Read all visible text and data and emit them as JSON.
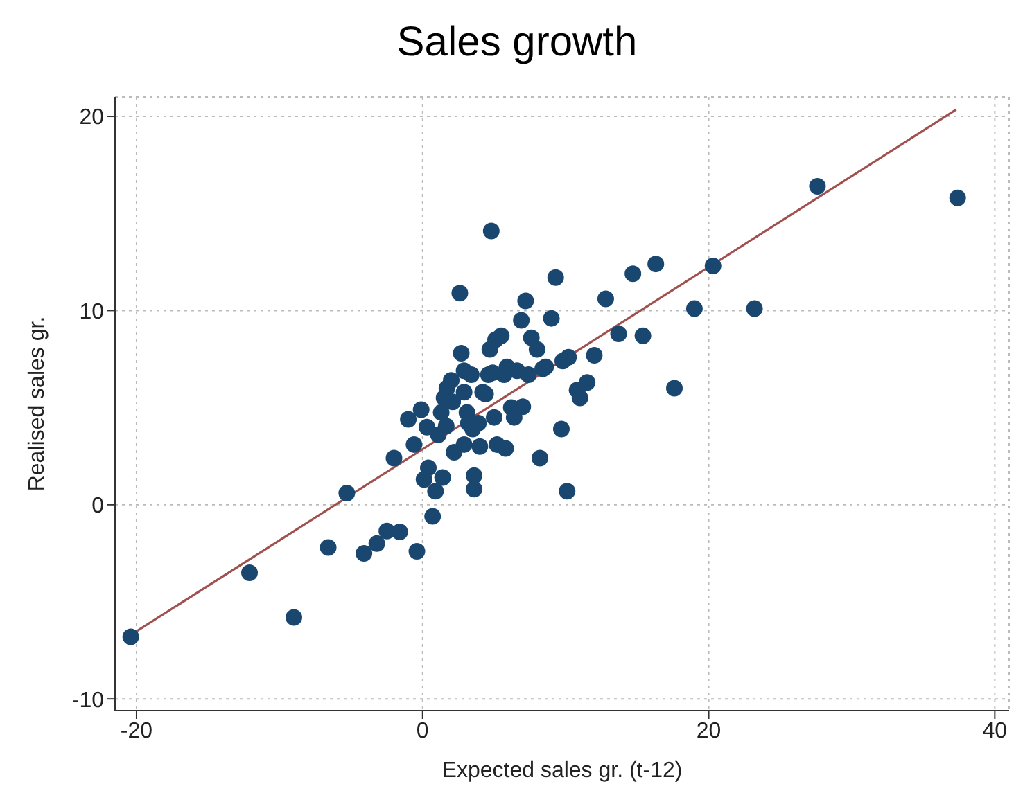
{
  "chart_data": {
    "type": "scatter",
    "title": "Sales growth",
    "xlabel": "Expected sales gr. (t-12)",
    "ylabel": "Realised sales gr.",
    "xlim": [
      -21.5,
      41
    ],
    "ylim": [
      -10.6,
      21
    ],
    "xticks": [
      -20,
      0,
      20,
      40
    ],
    "yticks": [
      -10,
      0,
      10,
      20
    ],
    "grid": true,
    "series": [
      {
        "color": "#1a476f",
        "marker": "circle",
        "x": [
          -20.4,
          -12.1,
          -9.0,
          -6.6,
          -5.3,
          -4.1,
          -3.2,
          -2.5,
          -1.6,
          -0.4,
          0.7,
          0.9,
          0.1,
          1.4,
          4.8,
          2.6,
          9.3,
          7.2,
          6.9,
          9.0,
          12.8,
          14.7,
          16.3,
          5.5,
          5.1,
          7.6,
          8.0,
          4.7,
          2.7,
          13.7,
          15.4,
          12.0,
          10.2,
          9.8,
          8.6,
          8.4,
          7.4,
          6.6,
          5.9,
          5.7,
          4.9,
          4.6,
          2.9,
          3.4,
          2.0,
          1.7,
          1.5,
          2.9,
          2.1,
          4.2,
          4.4,
          11.5,
          10.8,
          11.0,
          1.3,
          -0.1,
          -1.0,
          0.3,
          3.1,
          5.0,
          6.2,
          7.0,
          6.4,
          3.2,
          3.9,
          3.5,
          1.65,
          1.1,
          -0.6,
          -2.0,
          2.2,
          2.9,
          4.0,
          5.2,
          5.8,
          8.2,
          9.7,
          3.6,
          3.6,
          10.1,
          0.4,
          27.6,
          37.4,
          20.3,
          19.0,
          23.2,
          17.6
        ],
        "values": [
          -6.8,
          -3.5,
          -5.8,
          -2.2,
          0.6,
          -2.5,
          -2.0,
          -1.35,
          -1.4,
          -2.4,
          -0.6,
          0.7,
          1.3,
          1.4,
          14.1,
          10.9,
          11.7,
          10.5,
          9.5,
          9.6,
          10.6,
          11.9,
          12.4,
          8.7,
          8.5,
          8.6,
          8.0,
          8.0,
          7.8,
          8.8,
          8.7,
          7.7,
          7.6,
          7.4,
          7.1,
          7.0,
          6.7,
          6.9,
          7.1,
          6.7,
          6.8,
          6.7,
          6.9,
          6.7,
          6.4,
          6.0,
          5.5,
          5.8,
          5.3,
          5.8,
          5.7,
          6.3,
          5.9,
          5.5,
          4.75,
          4.9,
          4.4,
          4.0,
          4.75,
          4.5,
          5.0,
          5.05,
          4.5,
          4.2,
          4.2,
          3.9,
          4.05,
          3.6,
          3.1,
          2.4,
          2.7,
          3.1,
          3.0,
          3.1,
          2.9,
          2.4,
          3.9,
          1.5,
          0.8,
          0.7,
          1.9,
          16.4,
          15.8,
          12.3,
          10.1,
          10.1,
          6.0
        ]
      },
      {
        "type": "line",
        "color": "#a0504e",
        "marker": "none",
        "line_style": "solid",
        "x": [
          -20.6,
          37.3
        ],
        "values": [
          -6.8,
          20.35
        ]
      }
    ]
  }
}
